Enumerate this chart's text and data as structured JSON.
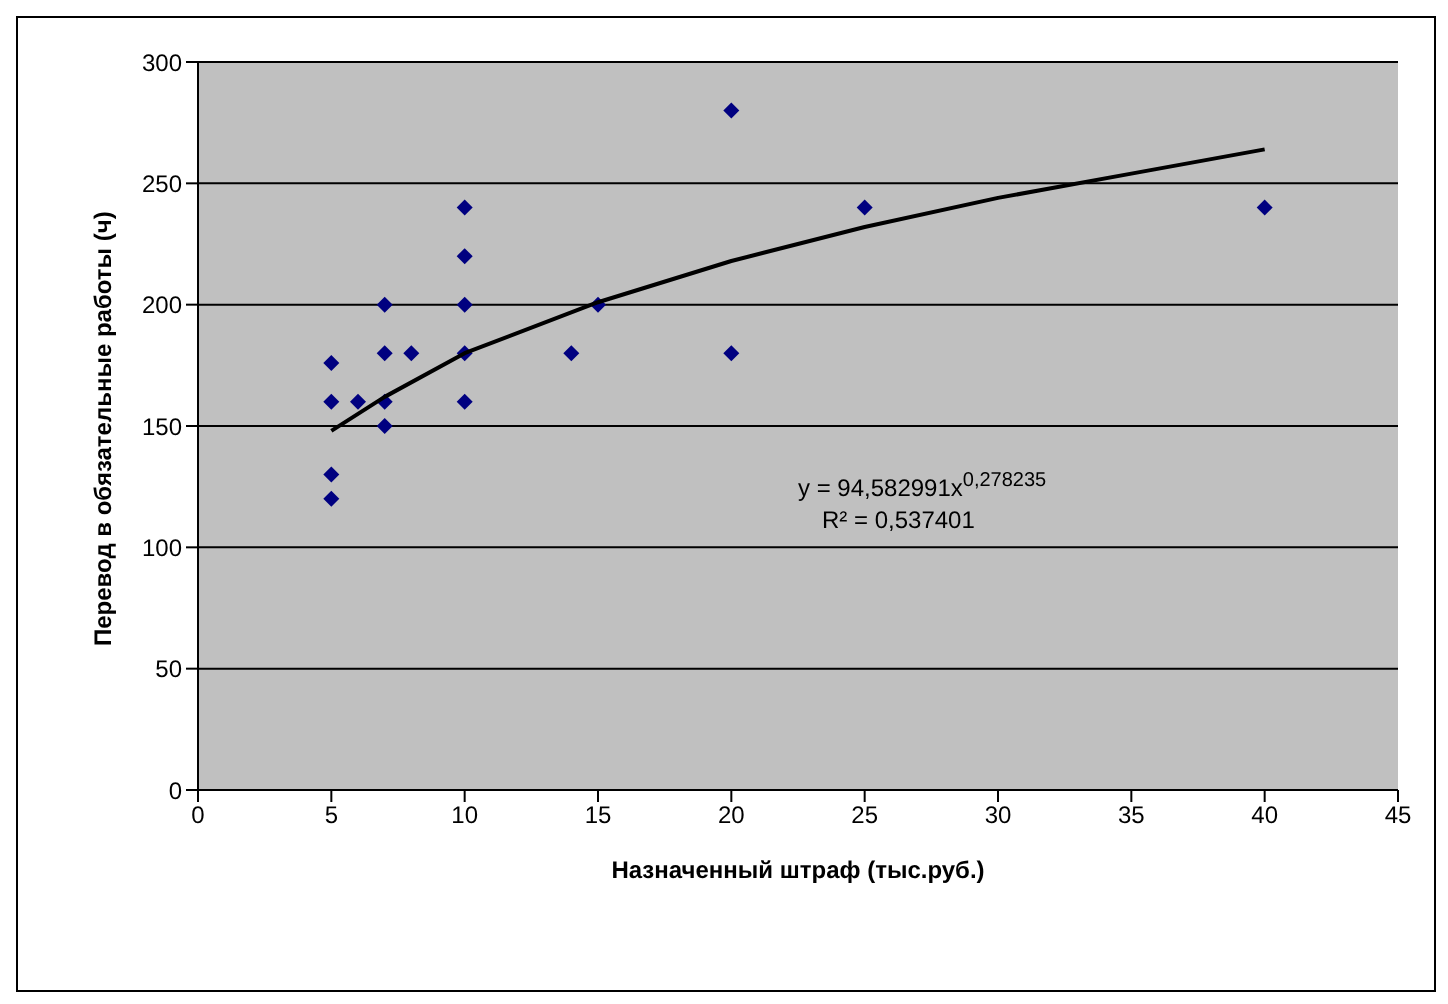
{
  "chart_data": {
    "type": "scatter",
    "xlabel": "Назначенный штраф (тыс.руб.)",
    "ylabel": "Перевод в обязательные работы (ч)",
    "xlim": [
      0,
      45
    ],
    "xticks": [
      0,
      5,
      10,
      15,
      20,
      25,
      30,
      35,
      40,
      45
    ],
    "ylim": [
      0,
      300
    ],
    "yticks": [
      0,
      50,
      100,
      150,
      200,
      250,
      300
    ],
    "grid": "y",
    "legend": false,
    "series": [
      {
        "color": "#000080",
        "marker": "diamond",
        "x": [
          5,
          5,
          5,
          5,
          6,
          7,
          7,
          7,
          7,
          8,
          10,
          10,
          10,
          10,
          10,
          14,
          15,
          20,
          20,
          25,
          40
        ],
        "values": [
          176,
          160,
          130,
          120,
          160,
          200,
          180,
          160,
          150,
          180,
          240,
          220,
          200,
          180,
          160,
          180,
          200,
          280,
          180,
          240,
          240
        ]
      },
      {
        "type": "line",
        "color": "#000000",
        "marker": "none",
        "line_style": "solid",
        "x": [
          5,
          7,
          10,
          15,
          20,
          25,
          30,
          35,
          40
        ],
        "values": [
          148,
          162,
          180,
          201,
          218,
          232,
          244,
          254,
          264
        ]
      }
    ],
    "annotations": [
      "y = 94,582991x$^{0,278235}$",
      "R² = 0,537401"
    ]
  }
}
